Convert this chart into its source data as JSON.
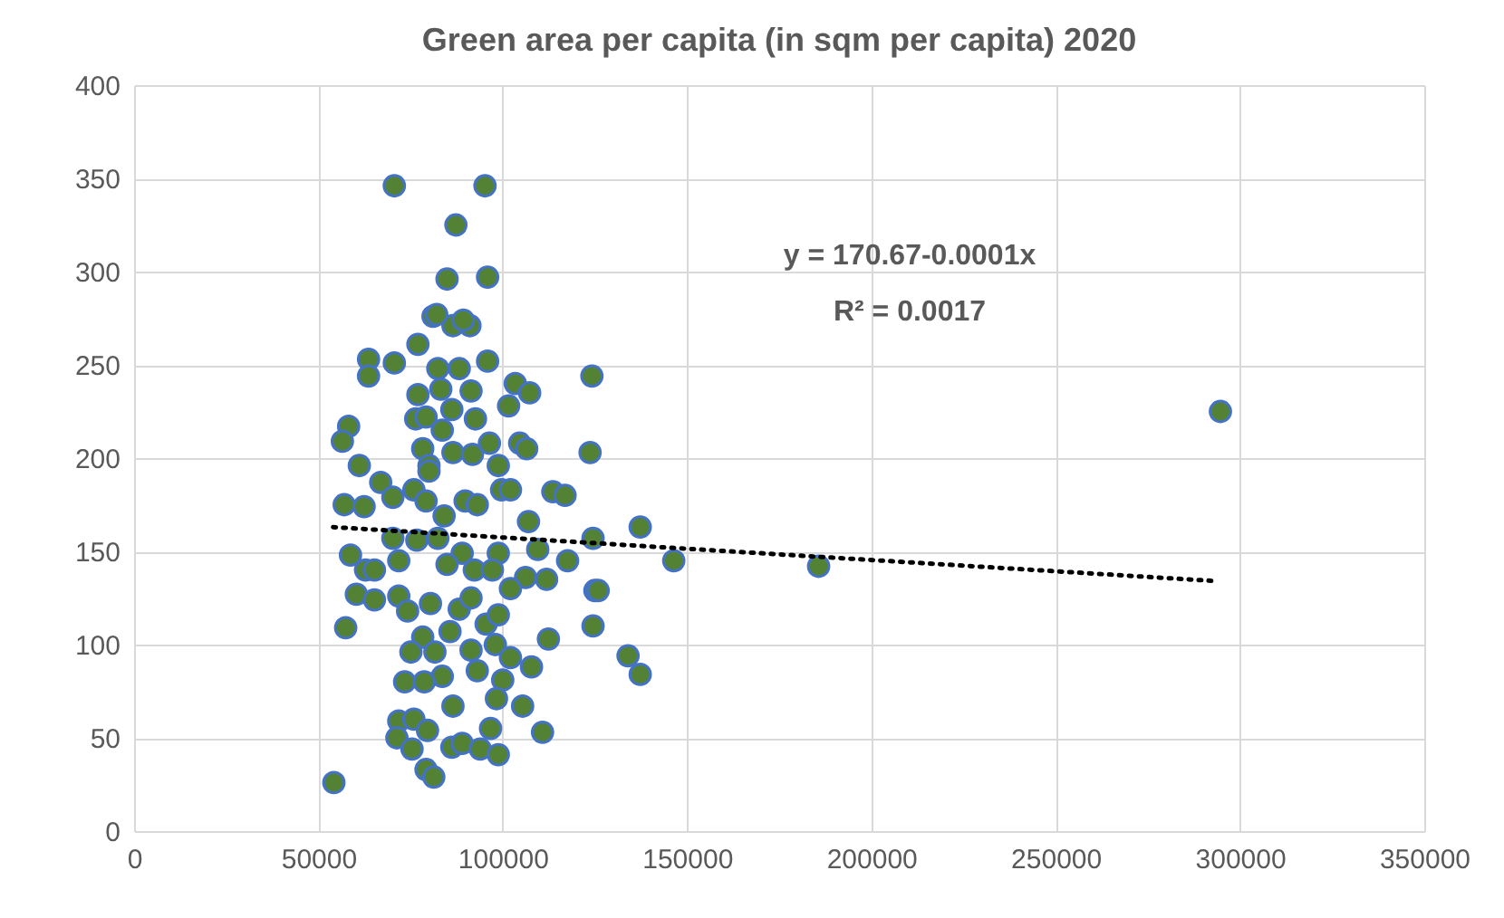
{
  "chart_data": {
    "type": "scatter",
    "title": "Green area per capita (in sqm per capita) 2020",
    "xlim": [
      0,
      350000
    ],
    "xticks": [
      0,
      50000,
      100000,
      150000,
      200000,
      250000,
      300000,
      350000
    ],
    "ylim": [
      0,
      400
    ],
    "yticks": [
      0,
      50,
      100,
      150,
      200,
      250,
      300,
      350,
      400
    ],
    "grid": true,
    "marker": "circle",
    "annotations": [
      "y = 170.67-0.0001x",
      "R² = 0.0017"
    ],
    "series": [
      {
        "color": "#548235",
        "x": [
          70600,
          95200,
          87300,
          84900,
          95900,
          81100,
          86500,
          91100,
          82100,
          89300,
          63600,
          63600,
          70600,
          77000,
          95900,
          82400,
          88200,
          124200,
          103400,
          107300,
          101600,
          77000,
          83200,
          91400,
          86200,
          76400,
          79200,
          92600,
          83600,
          58200,
          56500,
          61100,
          78300,
          86500,
          91800,
          96400,
          104600,
          106500,
          123700,
          98800,
          80000,
          80000,
          66900,
          57000,
          62400,
          70200,
          75900,
          79200,
          84100,
          89800,
          93100,
          99700,
          102100,
          113600,
          116900,
          107000,
          137300,
          124500,
          70200,
          76700,
          82400,
          89000,
          98800,
          58700,
          62800,
          71800,
          65200,
          84900,
          92300,
          97200,
          109500,
          117600,
          111900,
          106200,
          102100,
          125000,
          60300,
          65200,
          71800,
          74200,
          80400,
          88200,
          91400,
          95500,
          98800,
          57400,
          124500,
          112400,
          85700,
          78300,
          75100,
          81600,
          91400,
          98000,
          102100,
          107800,
          134000,
          137300,
          93100,
          83600,
          73400,
          78700,
          100000,
          98300,
          105400,
          86500,
          110800,
          71800,
          75900,
          79600,
          71300,
          75400,
          86200,
          89000,
          93900,
          96700,
          98800,
          79200,
          81300,
          54200,
          294700,
          146400,
          185700,
          125900
        ],
        "values": [
          346,
          346,
          325,
          296,
          297,
          276,
          271,
          271,
          277,
          274,
          253,
          244,
          251,
          261,
          252,
          248,
          248,
          244,
          240,
          235,
          228,
          234,
          237,
          236,
          226,
          221,
          222,
          221,
          215,
          217,
          209,
          196,
          205,
          203,
          202,
          208,
          208,
          205,
          203,
          196,
          196,
          193,
          187,
          175,
          174,
          179,
          183,
          177,
          169,
          177,
          175,
          183,
          183,
          182,
          180,
          166,
          163,
          157,
          157,
          156,
          157,
          149,
          149,
          148,
          140,
          145,
          140,
          143,
          140,
          140,
          151,
          145,
          135,
          136,
          130,
          129,
          127,
          124,
          126,
          118,
          122,
          119,
          125,
          111,
          116,
          109,
          110,
          103,
          107,
          104,
          96,
          96,
          97,
          100,
          93,
          88,
          94,
          84,
          86,
          83,
          80,
          80,
          81,
          71,
          67,
          67,
          53,
          59,
          60,
          54,
          50,
          44,
          45,
          47,
          44,
          55,
          41,
          33,
          29,
          26,
          225,
          145,
          142,
          129
        ]
      },
      {
        "type": "line",
        "color": "#000000",
        "line_style": "dotted",
        "marker": "none",
        "x": [
          54000,
          294000
        ],
        "values": [
          163,
          134
        ]
      }
    ]
  }
}
